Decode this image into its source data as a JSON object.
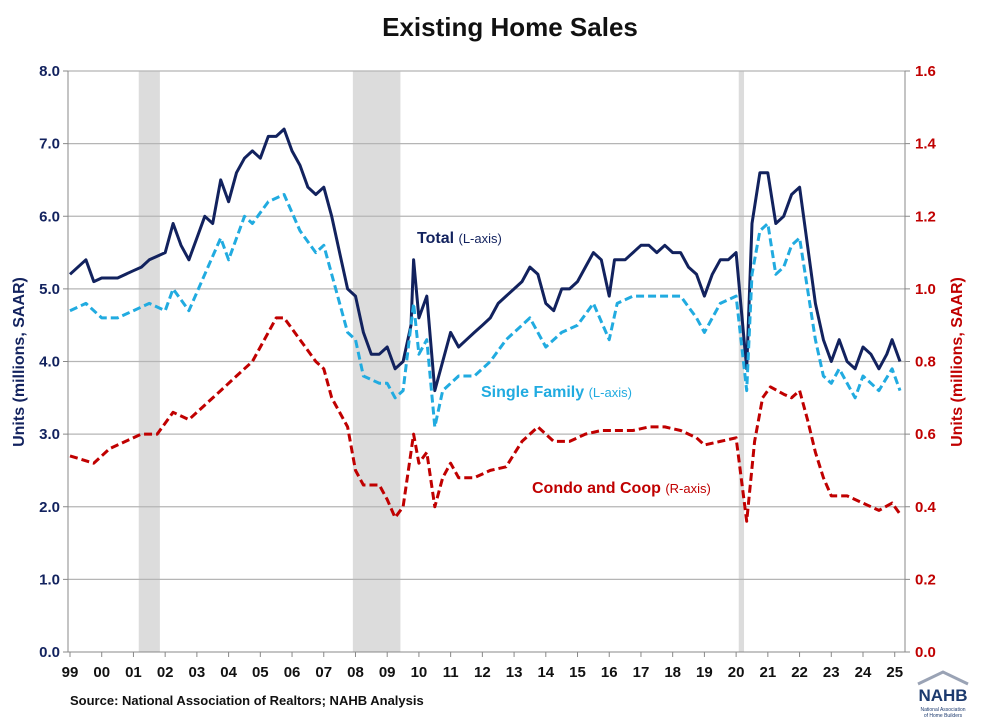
{
  "chart_data": {
    "type": "line",
    "title": "Existing Home Sales",
    "ylabel_left": "Units (millions, SAAR)",
    "ylabel_right": "Units (millions, SAAR)",
    "ylim_left": [
      0,
      8
    ],
    "ylim_right": [
      0,
      1.6
    ],
    "yticks_left": [
      "0.0",
      "1.0",
      "2.0",
      "3.0",
      "4.0",
      "5.0",
      "6.0",
      "7.0",
      "8.0"
    ],
    "yticks_right": [
      "0.0",
      "0.2",
      "0.4",
      "0.6",
      "0.8",
      "1.0",
      "1.2",
      "1.4",
      "1.6"
    ],
    "xticks": [
      "99",
      "00",
      "01",
      "02",
      "03",
      "04",
      "05",
      "06",
      "07",
      "08",
      "09",
      "10",
      "11",
      "12",
      "13",
      "14",
      "15",
      "16",
      "17",
      "18",
      "19",
      "20",
      "21",
      "22",
      "23",
      "24",
      "25"
    ],
    "grid": true,
    "recessions": [
      [
        "2001-03",
        "2001-11"
      ],
      [
        "2007-12",
        "2009-06"
      ],
      [
        "2020-02",
        "2020-04"
      ]
    ],
    "colors": {
      "total": "#12225e",
      "single_family": "#21abe0",
      "condo": "#c00000",
      "recession": "#dcdcdc",
      "left_axis": "#12225e",
      "right_axis": "#c00000"
    },
    "series": [
      {
        "name": "Total",
        "axis_note": "(L-axis)",
        "axis": "left",
        "style": "solid",
        "x": [
          "1999-01",
          "1999-07",
          "1999-10",
          "2000-01",
          "2000-07",
          "2001-01",
          "2001-04",
          "2001-07",
          "2001-10",
          "2002-01",
          "2002-04",
          "2002-07",
          "2002-10",
          "2003-01",
          "2003-04",
          "2003-07",
          "2003-10",
          "2004-01",
          "2004-04",
          "2004-07",
          "2004-10",
          "2005-01",
          "2005-04",
          "2005-07",
          "2005-10",
          "2006-01",
          "2006-04",
          "2006-07",
          "2006-10",
          "2007-01",
          "2007-04",
          "2007-07",
          "2007-10",
          "2008-01",
          "2008-04",
          "2008-07",
          "2008-10",
          "2009-01",
          "2009-04",
          "2009-07",
          "2009-10",
          "2009-11",
          "2010-01",
          "2010-04",
          "2010-07",
          "2010-10",
          "2011-01",
          "2011-04",
          "2011-07",
          "2011-10",
          "2012-01",
          "2012-04",
          "2012-07",
          "2012-10",
          "2013-01",
          "2013-04",
          "2013-07",
          "2013-10",
          "2014-01",
          "2014-04",
          "2014-07",
          "2014-10",
          "2015-01",
          "2015-04",
          "2015-07",
          "2015-10",
          "2016-01",
          "2016-03",
          "2016-07",
          "2016-10",
          "2017-01",
          "2017-04",
          "2017-07",
          "2017-10",
          "2018-01",
          "2018-04",
          "2018-07",
          "2018-10",
          "2019-01",
          "2019-04",
          "2019-07",
          "2019-10",
          "2020-01",
          "2020-05",
          "2020-07",
          "2020-10",
          "2021-01",
          "2021-04",
          "2021-07",
          "2021-10",
          "2022-01",
          "2022-04",
          "2022-07",
          "2022-10",
          "2023-01",
          "2023-04",
          "2023-07",
          "2023-10",
          "2024-01",
          "2024-04",
          "2024-07",
          "2024-10",
          "2024-12",
          "2025-03"
        ],
        "values": [
          5.2,
          5.4,
          5.1,
          5.15,
          5.15,
          5.25,
          5.3,
          5.4,
          5.45,
          5.5,
          5.9,
          5.6,
          5.4,
          5.7,
          6.0,
          5.9,
          6.5,
          6.2,
          6.6,
          6.8,
          6.9,
          6.8,
          7.1,
          7.1,
          7.2,
          6.9,
          6.7,
          6.4,
          6.3,
          6.4,
          6.0,
          5.5,
          5.0,
          4.9,
          4.4,
          4.1,
          4.1,
          4.2,
          3.9,
          4.0,
          4.5,
          5.4,
          4.6,
          4.9,
          3.6,
          4.0,
          4.4,
          4.2,
          4.3,
          4.4,
          4.5,
          4.6,
          4.8,
          4.9,
          5.0,
          5.1,
          5.3,
          5.2,
          4.8,
          4.7,
          5.0,
          5.0,
          5.1,
          5.3,
          5.5,
          5.4,
          4.9,
          5.4,
          5.4,
          5.5,
          5.6,
          5.6,
          5.5,
          5.6,
          5.5,
          5.5,
          5.3,
          5.2,
          4.9,
          5.2,
          5.4,
          5.4,
          5.5,
          3.9,
          5.9,
          6.6,
          6.6,
          5.9,
          6.0,
          6.3,
          6.4,
          5.6,
          4.8,
          4.3,
          4.0,
          4.3,
          4.0,
          3.9,
          4.2,
          4.1,
          3.9,
          4.1,
          4.3,
          4.0
        ]
      },
      {
        "name": "Single Family",
        "axis_note": "(L-axis)",
        "axis": "left",
        "style": "dashed",
        "x": [
          "1999-01",
          "1999-07",
          "2000-01",
          "2000-07",
          "2001-01",
          "2001-07",
          "2002-01",
          "2002-04",
          "2002-10",
          "2003-04",
          "2003-10",
          "2004-01",
          "2004-07",
          "2004-10",
          "2005-04",
          "2005-10",
          "2006-04",
          "2006-10",
          "2007-01",
          "2007-04",
          "2007-10",
          "2008-01",
          "2008-04",
          "2008-10",
          "2009-01",
          "2009-04",
          "2009-07",
          "2009-11",
          "2010-01",
          "2010-04",
          "2010-07",
          "2010-10",
          "2011-04",
          "2011-10",
          "2012-04",
          "2012-10",
          "2013-04",
          "2013-07",
          "2014-01",
          "2014-07",
          "2015-01",
          "2015-07",
          "2016-01",
          "2016-04",
          "2016-10",
          "2017-04",
          "2017-10",
          "2018-04",
          "2018-10",
          "2019-01",
          "2019-07",
          "2020-01",
          "2020-05",
          "2020-07",
          "2020-10",
          "2021-01",
          "2021-04",
          "2021-07",
          "2021-10",
          "2022-01",
          "2022-04",
          "2022-07",
          "2022-10",
          "2023-01",
          "2023-04",
          "2023-10",
          "2024-01",
          "2024-07",
          "2024-12",
          "2025-03"
        ],
        "values": [
          4.7,
          4.8,
          4.6,
          4.6,
          4.7,
          4.8,
          4.7,
          5.0,
          4.7,
          5.2,
          5.7,
          5.4,
          6.0,
          5.9,
          6.2,
          6.3,
          5.8,
          5.5,
          5.6,
          5.2,
          4.4,
          4.3,
          3.8,
          3.7,
          3.7,
          3.5,
          3.6,
          4.8,
          4.1,
          4.3,
          3.1,
          3.6,
          3.8,
          3.8,
          4.0,
          4.3,
          4.5,
          4.6,
          4.2,
          4.4,
          4.5,
          4.8,
          4.3,
          4.8,
          4.9,
          4.9,
          4.9,
          4.9,
          4.6,
          4.4,
          4.8,
          4.9,
          3.6,
          5.2,
          5.8,
          5.9,
          5.2,
          5.3,
          5.6,
          5.7,
          5.0,
          4.3,
          3.8,
          3.7,
          3.9,
          3.5,
          3.8,
          3.6,
          3.9,
          3.6
        ]
      },
      {
        "name": "Condo and Coop",
        "axis_note": "(R-axis)",
        "axis": "right",
        "style": "dashed",
        "x": [
          "1999-01",
          "1999-10",
          "2000-04",
          "2000-10",
          "2001-04",
          "2001-10",
          "2002-04",
          "2002-10",
          "2003-04",
          "2003-10",
          "2004-04",
          "2004-10",
          "2005-04",
          "2005-07",
          "2005-10",
          "2006-04",
          "2006-10",
          "2007-01",
          "2007-04",
          "2007-10",
          "2008-01",
          "2008-04",
          "2008-10",
          "2009-01",
          "2009-04",
          "2009-07",
          "2009-11",
          "2010-01",
          "2010-04",
          "2010-07",
          "2010-10",
          "2011-01",
          "2011-04",
          "2011-10",
          "2012-04",
          "2012-10",
          "2013-04",
          "2013-10",
          "2014-04",
          "2014-10",
          "2015-04",
          "2015-10",
          "2016-04",
          "2016-10",
          "2017-04",
          "2017-10",
          "2018-04",
          "2018-10",
          "2019-01",
          "2019-07",
          "2020-01",
          "2020-05",
          "2020-08",
          "2020-11",
          "2021-02",
          "2021-07",
          "2021-10",
          "2022-01",
          "2022-04",
          "2022-07",
          "2022-10",
          "2023-01",
          "2023-07",
          "2024-01",
          "2024-07",
          "2024-12",
          "2025-03"
        ],
        "values": [
          0.54,
          0.52,
          0.56,
          0.58,
          0.6,
          0.6,
          0.66,
          0.64,
          0.68,
          0.72,
          0.76,
          0.8,
          0.88,
          0.92,
          0.92,
          0.86,
          0.8,
          0.78,
          0.7,
          0.62,
          0.5,
          0.46,
          0.46,
          0.42,
          0.37,
          0.4,
          0.6,
          0.52,
          0.55,
          0.4,
          0.48,
          0.52,
          0.48,
          0.48,
          0.5,
          0.51,
          0.58,
          0.62,
          0.58,
          0.58,
          0.6,
          0.61,
          0.61,
          0.61,
          0.62,
          0.62,
          0.61,
          0.59,
          0.57,
          0.58,
          0.59,
          0.36,
          0.58,
          0.7,
          0.73,
          0.71,
          0.7,
          0.72,
          0.64,
          0.55,
          0.48,
          0.43,
          0.43,
          0.41,
          0.39,
          0.41,
          0.38
        ]
      }
    ]
  },
  "source": "Source: National Association of Realtors; NAHB Analysis",
  "logo": {
    "text": "NAHB",
    "subtext": "National Association of Home Builders"
  }
}
